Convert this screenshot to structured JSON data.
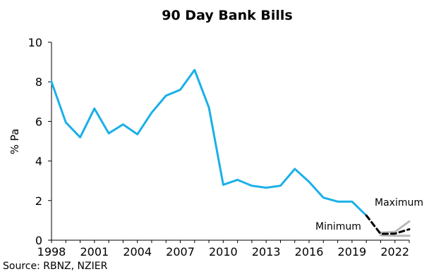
{
  "chart_data": {
    "type": "line",
    "title": "90 Day Bank Bills",
    "ylabel": "% Pa",
    "xlabel": "",
    "xlim": [
      1998,
      2023
    ],
    "ylim": [
      0,
      10
    ],
    "yticks": [
      0,
      2,
      4,
      6,
      8,
      10
    ],
    "xtick_labels": [
      "1998",
      "2001",
      "2004",
      "2007",
      "2010",
      "2013",
      "2016",
      "2019",
      "2022"
    ],
    "grid": false,
    "series": [
      {
        "key": "actual",
        "color": "#1ab0e8",
        "style": "solid",
        "x": [
          1998,
          1999,
          2000,
          2001,
          2002,
          2003,
          2004,
          2005,
          2006,
          2007,
          2008,
          2009,
          2010,
          2011,
          2012,
          2013,
          2014,
          2015,
          2016,
          2017,
          2018,
          2019,
          2020
        ],
        "y": [
          8.0,
          5.95,
          5.2,
          6.65,
          5.4,
          5.85,
          5.35,
          6.45,
          7.3,
          7.6,
          8.6,
          6.7,
          2.8,
          3.05,
          2.75,
          2.65,
          2.75,
          3.6,
          2.95,
          2.15,
          1.95,
          1.95,
          1.25
        ]
      },
      {
        "key": "forecast",
        "color": "#000000",
        "style": "dashed",
        "x": [
          2020,
          2021,
          2022,
          2023
        ],
        "y": [
          1.25,
          0.32,
          0.33,
          0.55
        ]
      },
      {
        "key": "maximum",
        "color": "#b8b8b8",
        "style": "solid",
        "x": [
          2021,
          2022,
          2023
        ],
        "y": [
          0.38,
          0.42,
          0.95
        ]
      },
      {
        "key": "minimum",
        "color": "#b8b8b8",
        "style": "solid",
        "x": [
          2021,
          2022,
          2023
        ],
        "y": [
          0.25,
          0.22,
          0.22
        ]
      }
    ],
    "annotations": [
      {
        "key": "maximum",
        "text": "Maximum"
      },
      {
        "key": "minimum",
        "text": "Minimum"
      }
    ],
    "source": "Source: RBNZ, NZIER"
  }
}
